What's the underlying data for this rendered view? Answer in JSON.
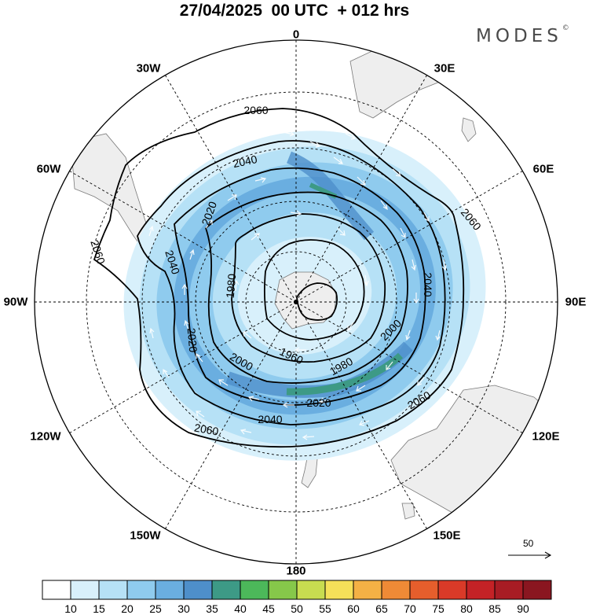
{
  "title": "27/04/2025  00 UTC  + 012 hrs",
  "brand": "MODES",
  "brand_mark": "©",
  "longitude_labels": {
    "lon_0": "0",
    "lon_30e": "30E",
    "lon_60e": "60E",
    "lon_90e": "90E",
    "lon_120e": "120E",
    "lon_150e": "150E",
    "lon_180": "180",
    "lon_150w": "150W",
    "lon_120w": "120W",
    "lon_90w": "90W",
    "lon_60w": "60W",
    "lon_30w": "30W"
  },
  "contour_labels": {
    "c2060_top": "2060",
    "c2040_top": "2040",
    "c2020_left": "2020",
    "c2060_right": "2060",
    "c2040_right": "2040",
    "c2060_left": "2060",
    "c2040_left": "2040",
    "c1980_center": "1980",
    "c2020_lowerleft": "2020",
    "c2000_lowerleft": "2000",
    "c1960_lower": "1960",
    "c1980_lower": "1980",
    "c2000_right": "2000",
    "c2020_bottom": "2020",
    "c2040_bottom": "2040",
    "c2060_bottomright": "2060",
    "c2060_bottomleft": "2060"
  },
  "vector_reference": {
    "label": "50"
  },
  "colorbar": {
    "labels": [
      "10",
      "15",
      "20",
      "25",
      "30",
      "35",
      "40",
      "45",
      "50",
      "55",
      "60",
      "65",
      "70",
      "75",
      "80",
      "85",
      "90"
    ],
    "colors": [
      "#ffffff",
      "#d8f0fb",
      "#b6e1f6",
      "#8fcbee",
      "#6aaee0",
      "#4e8fca",
      "#3d9a86",
      "#4cb85a",
      "#86c84a",
      "#c8dc50",
      "#f5e059",
      "#f4b145",
      "#ef8a36",
      "#e65e2c",
      "#da3a28",
      "#c42226",
      "#a81c24",
      "#8a1620"
    ]
  },
  "colors": {
    "land": "#eeeeee",
    "coast": "#777777",
    "contour": "#000000",
    "grid": "#000000"
  }
}
